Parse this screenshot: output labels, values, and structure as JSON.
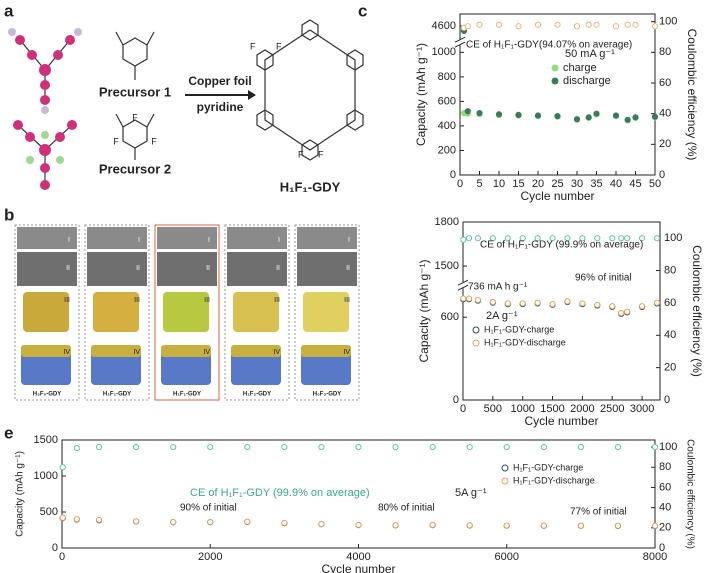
{
  "panels": {
    "labels": [
      "a",
      "b",
      "c",
      "e"
    ],
    "a": {
      "precursor1": "Precursor 1",
      "precursor2": "Precursor 2",
      "reagent1": "Copper foil",
      "reagent2": "pyridine",
      "product": "H₁F₁-GDY",
      "fluorine": "F"
    },
    "b": {
      "roman": [
        "I",
        "II",
        "III",
        "IV"
      ],
      "samples": [
        "H₃F₀-GDY",
        "H₂F₁-GDY",
        "H₁F₁-GDY",
        "H₁F₂-GDY",
        "H₀F₃-GDY"
      ]
    }
  },
  "chart_data": [
    {
      "type": "scatter",
      "xlabel": "Cycle number",
      "ylabel": "Capacity (mAh g⁻¹)",
      "y2label": "Coulombic efficiency (%)",
      "x": [
        1,
        2,
        5,
        10,
        15,
        20,
        25,
        30,
        33,
        35,
        40,
        43,
        45,
        50
      ],
      "xlim": [
        0,
        50
      ],
      "xticks": [
        0,
        5,
        10,
        15,
        20,
        25,
        30,
        35,
        40,
        45,
        50
      ],
      "ylim": [
        0,
        4700
      ],
      "ybreak": [
        1050,
        4500
      ],
      "yticks": [
        0,
        200,
        400,
        600,
        800,
        1000,
        4600
      ],
      "y2lim": [
        0,
        105
      ],
      "y2ticks": [
        0,
        20,
        40,
        60,
        80,
        100
      ],
      "legend_title": "50 mA g⁻¹",
      "annotations": [
        "CE of H₁F₁-GDY(94.07% on average)"
      ],
      "series": [
        {
          "name": "charge",
          "color": "#8fe07c",
          "filled": true,
          "values": [
            505,
            500,
            495,
            488,
            484,
            480,
            475,
            450,
            465,
            495,
            480,
            445,
            465,
            470
          ]
        },
        {
          "name": "discharge",
          "color": "#3b7a5c",
          "filled": true,
          "values": [
            4560,
            520,
            505,
            495,
            490,
            485,
            480,
            455,
            470,
            500,
            485,
            450,
            470,
            475
          ]
        },
        {
          "color": "#f0b27a",
          "filled": false,
          "axis": "y2",
          "values": [
            96,
            97,
            98,
            98,
            97,
            98,
            98,
            97,
            98,
            98,
            97,
            98,
            98,
            97
          ]
        }
      ]
    },
    {
      "type": "scatter",
      "xlabel": "Cycle number",
      "ylabel": "Capacity (mAh g⁻¹)",
      "y2label": "Coulombic efficiency (%)",
      "x": [
        5,
        100,
        250,
        500,
        750,
        1000,
        1250,
        1500,
        1750,
        2000,
        2250,
        2500,
        2650,
        2750,
        3000,
        3250
      ],
      "xlim": [
        0,
        3300
      ],
      "xticks": [
        0,
        500,
        1000,
        1500,
        2000,
        2500,
        3000
      ],
      "ylim": [
        0,
        1800
      ],
      "ybreak": [
        800,
        1400
      ],
      "yticks": [
        0,
        600,
        1500,
        1800
      ],
      "y2lim": [
        0,
        110
      ],
      "y2ticks": [
        0,
        20,
        40,
        60,
        80,
        100
      ],
      "legend_title": "2A g⁻¹",
      "annotations": [
        "CE of H₁F₁-GDY (99.9% on average)",
        "736 mA h g⁻¹",
        "96% of initial"
      ],
      "series": [
        {
          "name": "H₁F₁-GDY-charge",
          "color": "#2f4f4f",
          "filled": false,
          "values": [
            730,
            730,
            720,
            705,
            695,
            695,
            700,
            690,
            710,
            695,
            685,
            675,
            625,
            635,
            675,
            700
          ]
        },
        {
          "name": "H₁F₁-GDY-discharge",
          "color": "#e8a060",
          "filled": false,
          "values": [
            736,
            735,
            725,
            710,
            700,
            700,
            705,
            695,
            715,
            700,
            690,
            680,
            630,
            640,
            680,
            705
          ]
        },
        {
          "color": "#5fc8a8",
          "filled": false,
          "axis": "y2",
          "values": [
            99,
            100,
            100,
            100,
            100,
            100,
            100,
            100,
            100,
            100,
            100,
            100,
            100,
            100,
            100,
            100
          ]
        }
      ]
    },
    {
      "type": "scatter",
      "xlabel": "Cycle number",
      "ylabel": "Capacity (mAh g⁻¹)",
      "y2label": "Coulombic efficiency (%)",
      "x": [
        10,
        200,
        500,
        1000,
        1500,
        2000,
        2500,
        3000,
        3500,
        4000,
        4500,
        5000,
        5500,
        6000,
        6500,
        7000,
        7500,
        8000
      ],
      "xlim": [
        0,
        8000
      ],
      "xticks": [
        0,
        2000,
        4000,
        6000,
        8000
      ],
      "ylim": [
        0,
        1500
      ],
      "yticks": [
        0,
        500,
        1000,
        1500
      ],
      "y2lim": [
        0,
        107
      ],
      "y2ticks": [
        0,
        20,
        40,
        60,
        80,
        100
      ],
      "legend_title": "5A g⁻¹",
      "annotations": [
        "CE of H₁F₁-GDY (99.9% on average)",
        "90% of initial",
        "80% of initial",
        "77% of initial"
      ],
      "series": [
        {
          "name": "H₁F₁-GDY-charge",
          "color": "#2f4f4f",
          "filled": false,
          "values": [
            415,
            395,
            385,
            368,
            358,
            358,
            362,
            345,
            330,
            318,
            315,
            318,
            312,
            310,
            308,
            308,
            306,
            305
          ]
        },
        {
          "name": "H₁F₁-GDY-discharge",
          "color": "#e8a060",
          "filled": false,
          "values": [
            420,
            400,
            390,
            370,
            360,
            360,
            365,
            348,
            332,
            320,
            316,
            320,
            314,
            312,
            310,
            310,
            308,
            308
          ]
        },
        {
          "color": "#5fc8a8",
          "filled": false,
          "axis": "y2",
          "values": [
            80,
            99,
            100,
            100,
            100,
            100,
            100,
            100,
            100,
            100,
            100,
            100,
            100,
            100,
            100,
            100,
            100,
            100
          ]
        }
      ]
    }
  ]
}
